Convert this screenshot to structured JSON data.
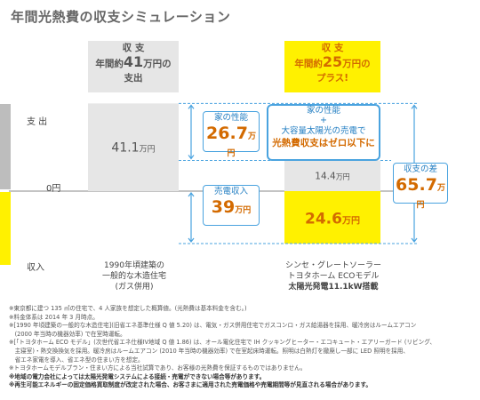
{
  "title": "年間光熱費の収支シミュレーション",
  "headers": {
    "left": {
      "line1": "収 支",
      "line2_prefix": "年間約",
      "value": "41",
      "line2_suffix": "万円の",
      "line3": "支出"
    },
    "right": {
      "line1": "収 支",
      "line2_prefix": "年間約",
      "value": "25",
      "line2_suffix": "万円の",
      "line3": "プラス!"
    }
  },
  "row_labels": {
    "expense": "支 出",
    "zero": "0円",
    "income": "収入"
  },
  "bubbles": {
    "performance": {
      "label": "家の性能",
      "value": "26.7",
      "unit": "万円"
    },
    "sale": {
      "label": "売電収入",
      "value": "39",
      "unit": "万円"
    },
    "diff": {
      "label": "収支の差",
      "value": "65.7",
      "unit": "万円"
    },
    "center": {
      "line1": "家の性能",
      "plus": "+",
      "line2": "大容量太陽光の売電で",
      "line3": "光熱費収支はゼロ以下に"
    }
  },
  "colors": {
    "gray_bar": "#e6e6e6",
    "yellow_bar": "#fff100",
    "accent_orange": "#d36a00",
    "accent_blue": "#4aa3df"
  },
  "chart_data": {
    "type": "bar",
    "categories": [
      "1990年頃建築の一般的な木造住宅(ガス併用)",
      "シンセ・グレートソーラー トヨタホーム ECOモデル 太陽光発電11.1kW搭載"
    ],
    "series": [
      {
        "values": [
          41.1,
          14.4
        ]
      },
      {
        "values": [
          0,
          -24.6
        ]
      }
    ],
    "value_labels": {
      "left_expense": "41.1",
      "right_expense": "14.4",
      "right_income": "24.6",
      "unit": "万円"
    },
    "ylabel": "",
    "xlabel": ""
  },
  "captions": {
    "left": [
      "1990年頃建築の",
      "一般的な木造住宅",
      "(ガス併用)"
    ],
    "right": [
      "シンセ・グレートソーラー",
      "トヨタホーム ECOモデル",
      "太陽光発電11.1kW搭載"
    ]
  },
  "notes": [
    "※東京都に建つ 135 ㎡の住宅で、4 人家族を想定した概算値。(光熱費は基本料金を含む。)",
    "※料金体系は 2014 年 3 月時点。",
    "※[1990 年頃建築の一般的な木造住宅](旧省エネ基準仕様 Q 値 5.20) は、電気・ガス併用住宅でガスコンロ・ガス給湯器を採用、暖冷房はルームエアコン",
    "　(2000 年当時の機器効率) で在室時運転。",
    "※[「トヨタホーム ECO モデル」(次世代省エネ仕様IV地域 Q 値 1.86) は、オール電化住宅で IH クッキングヒーター・エコキュート・エアリーガード (リビング、",
    "　主寝室)・熱交換換気を採用。暖冷房はルームエアコン (2010 年当時の機器効率) で在室起床時運転。照明は白熱灯を撤廃し一部に LED 照明を採用、",
    "　省エネ家電を導入、省エネ型の住まい方を想定。",
    "※トヨタホームモデルプラン・住まい方による当社試算であり、お客様の光熱費を保証するものではありません。",
    "※地域の電力会社によっては太陽光発電システムによる接続・売電ができない場合等があります。",
    "※再生可能エネルギーの固定価格買取制度が改定された場合、お客さまに適用された売電価格や売電期間等が見直される場合があります。"
  ]
}
